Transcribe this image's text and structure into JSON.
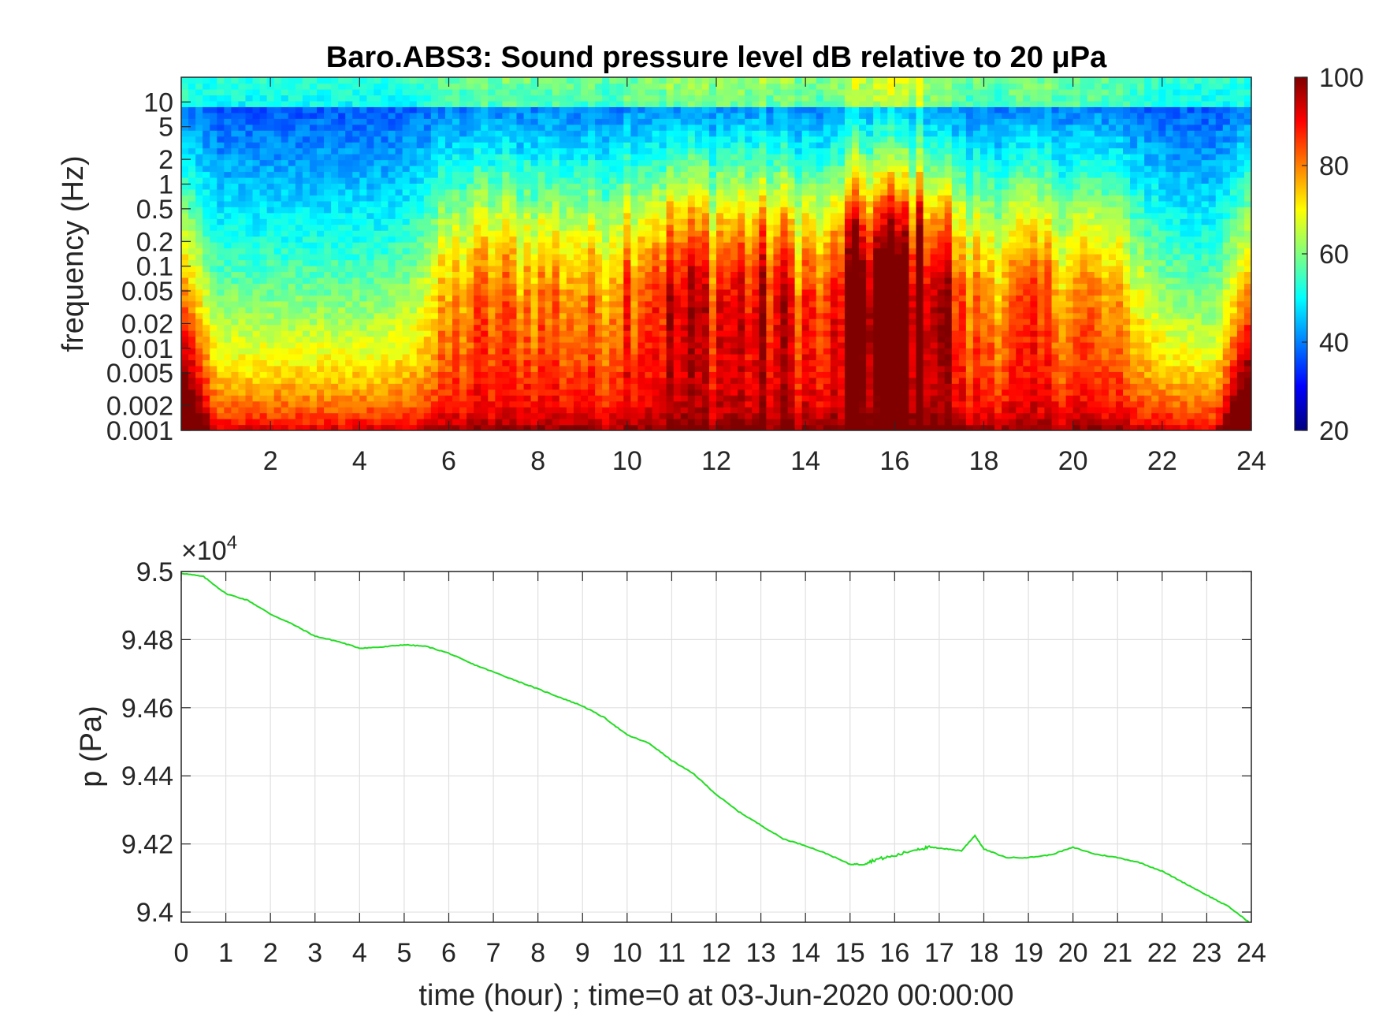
{
  "chart_data": [
    {
      "type": "heatmap",
      "title": "Baro.ABS3: Sound pressure level dB relative to 20 μPa",
      "ylabel": "frequency (Hz)",
      "xlabel": "",
      "x_scale": "linear",
      "y_scale": "log",
      "xlim": [
        0,
        24
      ],
      "ylim": [
        0.001,
        20
      ],
      "x_ticks": [
        "2",
        "4",
        "6",
        "8",
        "10",
        "12",
        "14",
        "16",
        "18",
        "20",
        "22",
        "24"
      ],
      "y_ticks": [
        "10",
        "5",
        "2",
        "1",
        "0.5",
        "0.2",
        "0.1",
        "0.05",
        "0.02",
        "0.01",
        "0.005",
        "0.002",
        "0.001"
      ],
      "colorbar": {
        "label": "",
        "range": [
          20,
          100
        ],
        "ticks": [
          "100",
          "80",
          "60",
          "40",
          "20"
        ],
        "colormap": "jet"
      },
      "grid": false,
      "hot_regions": [
        {
          "time_start": 15.0,
          "time_end": 17.0,
          "level": "high",
          "approx_db": 90
        },
        {
          "time_start": 9.5,
          "time_end": 14.5,
          "level": "medium-high",
          "approx_db": 75
        },
        {
          "time_start": 6.0,
          "time_end": 9.5,
          "level": "medium",
          "approx_db": 65
        },
        {
          "time_start": 17.0,
          "time_end": 21.0,
          "level": "medium",
          "approx_db": 65
        }
      ]
    },
    {
      "type": "line",
      "title": "",
      "xlabel": "time (hour) ; time=0 at 03-Jun-2020 00:00:00",
      "ylabel": "p (Pa)",
      "y_multiplier": "×10",
      "y_multiplier_exp": "4",
      "xlim": [
        0,
        24
      ],
      "ylim": [
        9.397,
        9.5
      ],
      "x_ticks": [
        "0",
        "1",
        "2",
        "3",
        "4",
        "5",
        "6",
        "7",
        "8",
        "9",
        "10",
        "11",
        "12",
        "13",
        "14",
        "15",
        "16",
        "17",
        "18",
        "19",
        "20",
        "21",
        "22",
        "23",
        "24"
      ],
      "y_ticks": [
        "9.5",
        "9.48",
        "9.46",
        "9.44",
        "9.42",
        "9.4"
      ],
      "grid": true,
      "line_color": "#22dd22",
      "series": [
        {
          "x": [
            0,
            0.5,
            1,
            1.5,
            2,
            2.5,
            3,
            3.5,
            4,
            4.5,
            5,
            5.5,
            6,
            6.5,
            7,
            7.5,
            8,
            8.5,
            9,
            9.5,
            10,
            10.5,
            11,
            11.5,
            12,
            12.5,
            13,
            13.5,
            14,
            14.5,
            15,
            15.3,
            15.6,
            16,
            16.5,
            16.8,
            17,
            17.5,
            17.8,
            18,
            18.5,
            19,
            19.5,
            20,
            20.5,
            21,
            21.5,
            22,
            22.5,
            23,
            23.5,
            24
          ],
          "y": [
            9.4995,
            9.4985,
            9.4935,
            9.4915,
            9.4875,
            9.4845,
            9.481,
            9.4795,
            9.4775,
            9.4778,
            9.4785,
            9.478,
            9.476,
            9.473,
            9.4705,
            9.468,
            9.4655,
            9.463,
            9.4605,
            9.457,
            9.452,
            9.4495,
            9.4445,
            9.4405,
            9.4345,
            9.4295,
            9.4255,
            9.4215,
            9.4195,
            9.417,
            9.414,
            9.4142,
            9.4155,
            9.4165,
            9.4185,
            9.419,
            9.4188,
            9.418,
            9.4225,
            9.4185,
            9.416,
            9.416,
            9.4168,
            9.419,
            9.417,
            9.416,
            9.4145,
            9.412,
            9.4085,
            9.405,
            9.4015,
            9.3965
          ]
        }
      ]
    }
  ]
}
